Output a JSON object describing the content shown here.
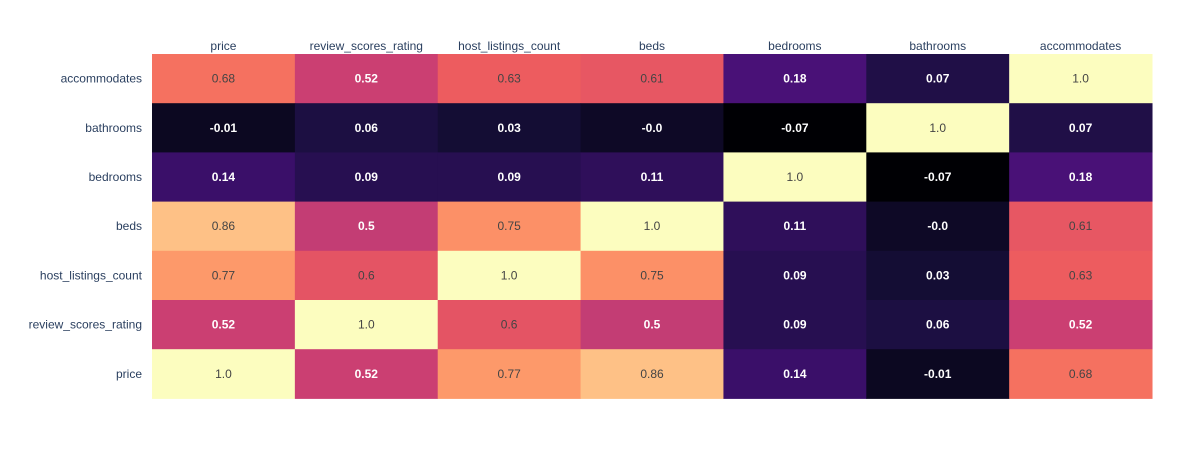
{
  "chart_data": {
    "type": "heatmap",
    "x_categories": [
      "price",
      "review_scores_rating",
      "host_listings_count",
      "beds",
      "bedrooms",
      "bathrooms",
      "accommodates"
    ],
    "y_categories": [
      "accommodates",
      "bathrooms",
      "bedrooms",
      "beds",
      "host_listings_count",
      "review_scores_rating",
      "price"
    ],
    "z": [
      [
        0.68,
        0.52,
        0.63,
        0.61,
        0.18,
        0.07,
        1.0
      ],
      [
        -0.01,
        0.06,
        0.03,
        -0.0,
        -0.07,
        1.0,
        0.07
      ],
      [
        0.14,
        0.09,
        0.09,
        0.11,
        1.0,
        -0.07,
        0.18
      ],
      [
        0.86,
        0.5,
        0.75,
        1.0,
        0.11,
        -0.0,
        0.61
      ],
      [
        0.77,
        0.6,
        1.0,
        0.75,
        0.09,
        0.03,
        0.63
      ],
      [
        0.52,
        1.0,
        0.6,
        0.5,
        0.09,
        0.06,
        0.52
      ],
      [
        1.0,
        0.52,
        0.77,
        0.86,
        0.14,
        -0.01,
        0.68
      ]
    ],
    "text": [
      [
        "0.68",
        "0.52",
        "0.63",
        "0.61",
        "0.18",
        "0.07",
        "1.0"
      ],
      [
        "-0.01",
        "0.06",
        "0.03",
        "-0.0",
        "-0.07",
        "1.0",
        "0.07"
      ],
      [
        "0.14",
        "0.09",
        "0.09",
        "0.11",
        "1.0",
        "-0.07",
        "0.18"
      ],
      [
        "0.86",
        "0.5",
        "0.75",
        "1.0",
        "0.11",
        "-0.0",
        "0.61"
      ],
      [
        "0.77",
        "0.6",
        "1.0",
        "0.75",
        "0.09",
        "0.03",
        "0.63"
      ],
      [
        "0.52",
        "1.0",
        "0.6",
        "0.5",
        "0.09",
        "0.06",
        "0.52"
      ],
      [
        "1.0",
        "0.52",
        "0.77",
        "0.86",
        "0.14",
        "-0.01",
        "0.68"
      ]
    ],
    "zrange": [
      -0.07,
      1.0
    ],
    "colorscale": "magma",
    "x_axis_side": "top"
  }
}
